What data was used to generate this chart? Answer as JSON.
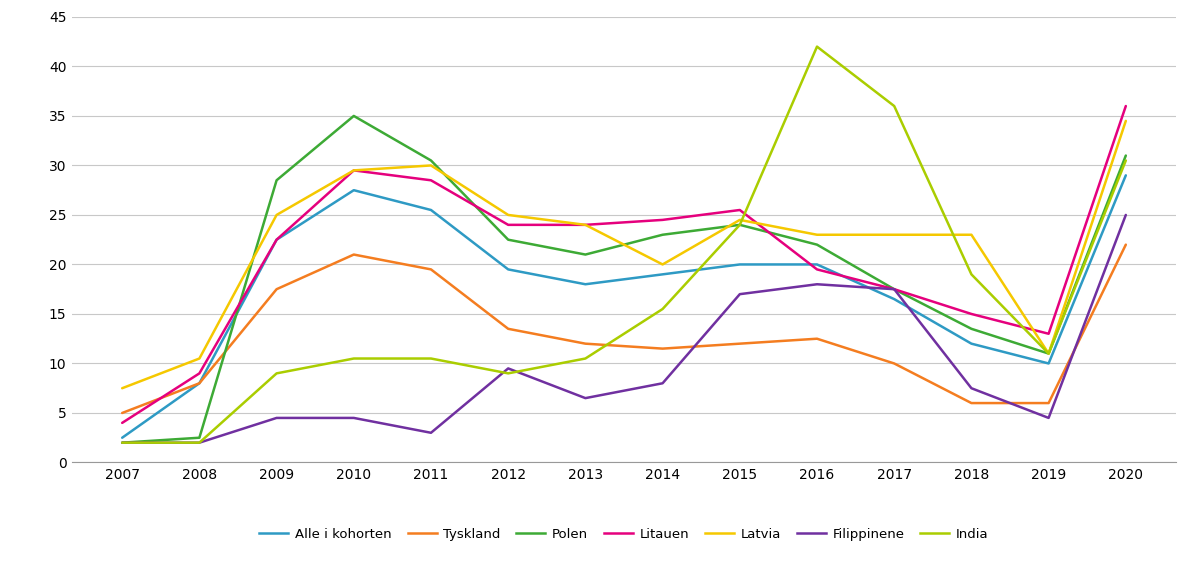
{
  "years": [
    2007,
    2008,
    2009,
    2010,
    2011,
    2012,
    2013,
    2014,
    2015,
    2016,
    2017,
    2018,
    2019,
    2020
  ],
  "series": {
    "Alle i kohorten": {
      "values": [
        2.5,
        8.0,
        22.5,
        27.5,
        25.5,
        19.5,
        18.0,
        19.0,
        20.0,
        20.0,
        16.5,
        12.0,
        10.0,
        29.0
      ],
      "color": "#2E9AC4"
    },
    "Tyskland": {
      "values": [
        5.0,
        8.0,
        17.5,
        21.0,
        19.5,
        13.5,
        12.0,
        11.5,
        12.0,
        12.5,
        10.0,
        6.0,
        6.0,
        22.0
      ],
      "color": "#F47D20"
    },
    "Polen": {
      "values": [
        2.0,
        2.5,
        28.5,
        35.0,
        30.5,
        22.5,
        21.0,
        23.0,
        24.0,
        22.0,
        17.5,
        13.5,
        11.0,
        31.0
      ],
      "color": "#3DAA35"
    },
    "Litauen": {
      "values": [
        4.0,
        9.0,
        22.5,
        29.5,
        28.5,
        24.0,
        24.0,
        24.5,
        25.5,
        19.5,
        17.5,
        15.0,
        13.0,
        36.0
      ],
      "color": "#E5007D"
    },
    "Latvia": {
      "values": [
        7.5,
        10.5,
        25.0,
        29.5,
        30.0,
        25.0,
        24.0,
        20.0,
        24.5,
        23.0,
        23.0,
        23.0,
        11.0,
        34.5
      ],
      "color": "#F5C800"
    },
    "Filippinene": {
      "values": [
        2.0,
        2.0,
        4.5,
        4.5,
        3.0,
        9.5,
        6.5,
        8.0,
        17.0,
        18.0,
        17.5,
        7.5,
        4.5,
        25.0
      ],
      "color": "#7030A0"
    },
    "India": {
      "values": [
        2.0,
        2.0,
        9.0,
        10.5,
        10.5,
        9.0,
        10.5,
        15.5,
        24.0,
        42.0,
        36.0,
        19.0,
        11.0,
        30.5
      ],
      "color": "#AACD00"
    }
  },
  "ylim": [
    0,
    45
  ],
  "yticks": [
    0,
    5,
    10,
    15,
    20,
    25,
    30,
    35,
    40,
    45
  ],
  "background_color": "#FFFFFF",
  "grid_color": "#C8C8C8",
  "line_width": 1.8,
  "legend_fontsize": 9.5,
  "tick_fontsize": 10,
  "legend_order": [
    "Alle i kohorten",
    "Tyskland",
    "Polen",
    "Litauen",
    "Latvia",
    "Filippinene",
    "India"
  ]
}
